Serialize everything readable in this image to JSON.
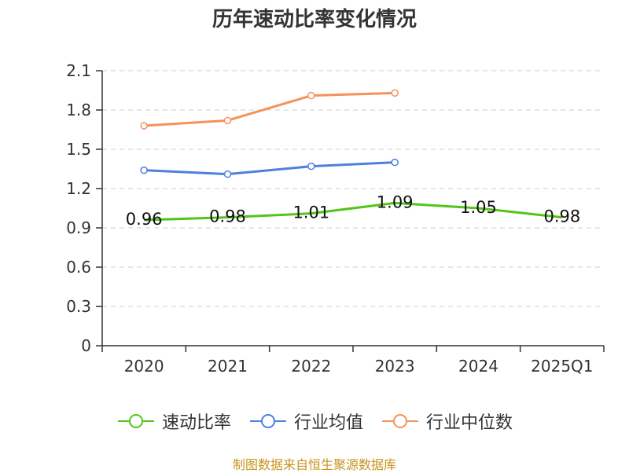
{
  "title": "历年速动比率变化情况",
  "source": "制图数据来自恒生聚源数据库",
  "colors": {
    "speed_ratio": "#52c41a",
    "industry_avg": "#4f7fe0",
    "industry_median": "#f5925a",
    "axis": "#333333",
    "grid": "#cccccc"
  },
  "chart_data": {
    "type": "line",
    "categories": [
      "2020",
      "2021",
      "2022",
      "2023",
      "2024",
      "2025Q1"
    ],
    "ylim": [
      0,
      2.1
    ],
    "yticks": [
      "0",
      "0.3",
      "0.6",
      "0.9",
      "1.2",
      "1.5",
      "1.8",
      "2.1"
    ],
    "grid": true,
    "legend_position": "bottom",
    "series": [
      {
        "key": "speed_ratio",
        "name": "速动比率",
        "values": [
          0.96,
          0.98,
          1.01,
          1.09,
          1.05,
          0.98
        ],
        "labels": [
          "0.96",
          "0.98",
          "1.01",
          "1.09",
          "1.05",
          "0.98"
        ],
        "show_labels": true,
        "markers": false
      },
      {
        "key": "industry_avg",
        "name": "行业均值",
        "values": [
          1.34,
          1.31,
          1.37,
          1.4,
          null,
          null
        ],
        "show_labels": false,
        "markers": true
      },
      {
        "key": "industry_median",
        "name": "行业中位数",
        "values": [
          1.68,
          1.72,
          1.91,
          1.93,
          null,
          null
        ],
        "show_labels": false,
        "markers": true
      }
    ]
  }
}
